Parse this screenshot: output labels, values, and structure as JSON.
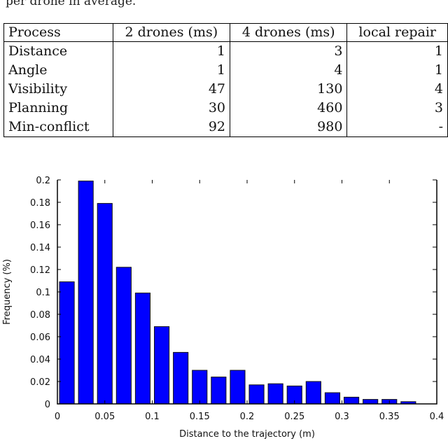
{
  "caption_fragment": "per drone in average.",
  "table": {
    "headers": [
      "Process",
      "2 drones (ms)",
      "4 drones (ms)",
      "local repair"
    ],
    "rows": [
      [
        "Distance",
        "1",
        "3",
        "1"
      ],
      [
        "Angle",
        "1",
        "4",
        "1"
      ],
      [
        "Visibility",
        "47",
        "130",
        "4"
      ],
      [
        "Planning",
        "30",
        "460",
        "3"
      ],
      [
        "Min-conflict",
        "92",
        "980",
        "-"
      ]
    ]
  },
  "chart_data": {
    "type": "bar",
    "title": "",
    "xlabel": "Distance to the trajectory (m)",
    "ylabel": "Frequency (%)",
    "xlim": [
      0,
      0.4
    ],
    "ylim": [
      0,
      0.2
    ],
    "bin_width": 0.02,
    "x": [
      0.01,
      0.03,
      0.05,
      0.07,
      0.09,
      0.11,
      0.13,
      0.15,
      0.17,
      0.19,
      0.21,
      0.23,
      0.25,
      0.27,
      0.29,
      0.31,
      0.33,
      0.35,
      0.37
    ],
    "values": [
      0.109,
      0.199,
      0.179,
      0.122,
      0.099,
      0.069,
      0.046,
      0.03,
      0.024,
      0.03,
      0.017,
      0.018,
      0.016,
      0.02,
      0.01,
      0.006,
      0.004,
      0.004,
      0.002
    ],
    "xticks": [
      "0",
      "0.05",
      "0.1",
      "0.15",
      "0.2",
      "0.25",
      "0.3",
      "0.35",
      "0.4"
    ],
    "yticks": [
      "0",
      "0.02",
      "0.04",
      "0.06",
      "0.08",
      "0.1",
      "0.12",
      "0.14",
      "0.16",
      "0.18",
      "0.2"
    ],
    "bar_color": "#0000ff"
  }
}
